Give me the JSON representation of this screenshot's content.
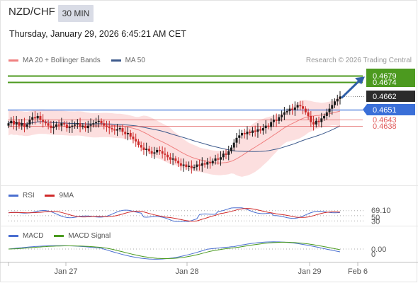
{
  "header": {
    "symbol": "NZD/CHF",
    "timeframe": "30 MIN",
    "datetime": "Thursday, January 29, 2026 6:45:21 AM CET"
  },
  "legend": {
    "ma20": "MA 20 + Bollinger Bands",
    "ma50": "MA 50",
    "credit": "Research © 2026 Trading Central"
  },
  "rsi_legend": {
    "rsi": "RSI",
    "ma": "9MA"
  },
  "macd_legend": {
    "macd": "MACD",
    "signal": "MACD Signal"
  },
  "colors": {
    "up_candle": "#1a1a1a",
    "down_candle": "#cc2a2a",
    "ma20": "#f08080",
    "band_fill": "#fbd9d9",
    "ma50": "#3d5a8c",
    "resistance": "#4c9a1f",
    "pivot": "#3a6fd8",
    "support": "#e05a5a",
    "current": "#2b2b2b",
    "arrow": "#2f5fa8",
    "rsi": "#4a6fd0",
    "rsi_ma": "#d02a2a",
    "macd": "#4a6fd0",
    "macd_signal": "#4a9a1f"
  },
  "chart_data": [
    {
      "type": "candlestick",
      "title": "NZD/CHF 30 MIN",
      "x_labels": [
        "Jan 27",
        "Jan 28",
        "Jan 29",
        "Feb 6"
      ],
      "ylim": [
        0.459,
        0.4685
      ],
      "levels": [
        {
          "name": "resistance-2",
          "value": 0.4679,
          "label": "0.4679",
          "style": "green"
        },
        {
          "name": "resistance-1",
          "value": 0.4674,
          "label": "0.4674",
          "style": "green"
        },
        {
          "name": "current",
          "value": 0.4662,
          "label": "0.4662",
          "style": "dark"
        },
        {
          "name": "pivot",
          "value": 0.4651,
          "label": "0.4651",
          "style": "blue"
        },
        {
          "name": "support-1",
          "value": 0.4643,
          "label": "0.4643",
          "style": "red"
        },
        {
          "name": "support-2",
          "value": 0.4638,
          "label": "0.4638",
          "style": "red"
        }
      ],
      "close": [
        0.464,
        0.4642,
        0.4639,
        0.4641,
        0.4638,
        0.464,
        0.4637,
        0.4639,
        0.4643,
        0.4645,
        0.4644,
        0.4646,
        0.4643,
        0.4641,
        0.464,
        0.4638,
        0.4636,
        0.4637,
        0.4639,
        0.4638,
        0.464,
        0.4639,
        0.4636,
        0.4637,
        0.4638,
        0.4639,
        0.464,
        0.4637,
        0.4638,
        0.4636,
        0.4638,
        0.4639,
        0.464,
        0.4641,
        0.4642,
        0.464,
        0.4638,
        0.4637,
        0.4636,
        0.4635,
        0.4634,
        0.4635,
        0.4636,
        0.4633,
        0.4631,
        0.4632,
        0.4629,
        0.4627,
        0.4625,
        0.4622,
        0.462,
        0.4618,
        0.4619,
        0.4617,
        0.4615,
        0.4616,
        0.4618,
        0.4617,
        0.4615,
        0.4614,
        0.4612,
        0.461,
        0.4611,
        0.4609,
        0.4607,
        0.4605,
        0.4606,
        0.4604,
        0.4605,
        0.4603,
        0.4604,
        0.4606,
        0.4605,
        0.4607,
        0.4606,
        0.4608,
        0.4607,
        0.4609,
        0.4611,
        0.461,
        0.4612,
        0.4615,
        0.4614,
        0.4617,
        0.462,
        0.4624,
        0.4628,
        0.463,
        0.4632,
        0.4631,
        0.4633,
        0.4632,
        0.4634,
        0.4633,
        0.4635,
        0.4634,
        0.4636,
        0.4638,
        0.4637,
        0.4641,
        0.4643,
        0.4642,
        0.4645,
        0.4647,
        0.4649,
        0.465,
        0.4652,
        0.4651,
        0.4653,
        0.4655,
        0.4654,
        0.4652,
        0.4649,
        0.4646,
        0.4641,
        0.4639,
        0.4642,
        0.4641,
        0.4644,
        0.4646,
        0.4649,
        0.4652,
        0.4655,
        0.4658,
        0.466,
        0.4662
      ]
    },
    {
      "type": "line",
      "title": "RSI",
      "series": [
        {
          "name": "RSI"
        },
        {
          "name": "9MA"
        }
      ],
      "current_value": "69.10",
      "tick_labels": [
        "50",
        "30"
      ]
    },
    {
      "type": "line",
      "title": "MACD",
      "series": [
        {
          "name": "MACD"
        },
        {
          "name": "MACD Signal"
        }
      ],
      "current_value": "0.00",
      "tick_labels": [
        "0"
      ]
    }
  ]
}
